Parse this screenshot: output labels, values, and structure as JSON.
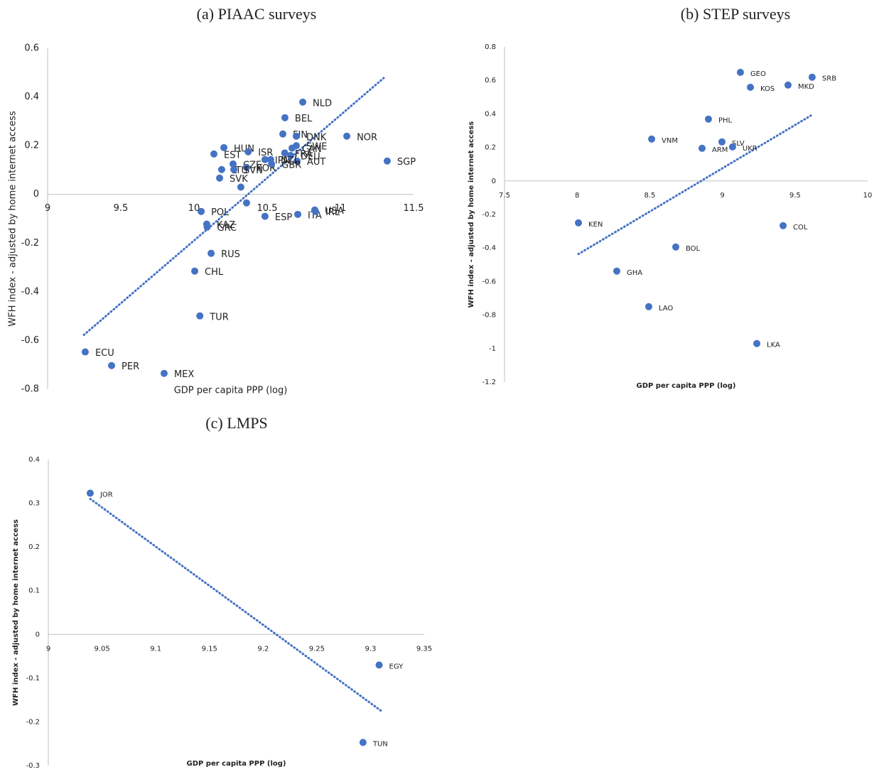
{
  "chart_data": [
    {
      "type": "scatter",
      "title": "(a)  PIAAC surveys",
      "x_label": "GDP per capita PPP (log)",
      "y_label": "WFH index - adjusted by home internet access",
      "color": "#4472c4",
      "labels": [
        "ECU",
        "PER",
        "MEX",
        "TUR",
        "CHL",
        "RUS",
        "GRC",
        "KAZ",
        "POL",
        null,
        "ESP",
        "ITA",
        "USA",
        "IRL",
        "NLD",
        "BEL",
        "FIN",
        "DNK",
        "NOR",
        "SWE",
        "CAN",
        "FRA",
        "HUN",
        "EST",
        "ISR",
        "CZE",
        "IPN",
        "KOR",
        "DEU",
        "AUT",
        "SGP",
        "LTU",
        "SVN",
        "SVK",
        "NZL",
        "GBR",
        null
      ],
      "x": [
        9.257,
        9.437,
        9.796,
        10.04,
        10.005,
        10.117,
        10.09,
        10.087,
        10.049,
        10.359,
        10.485,
        10.709,
        10.825,
        10.83,
        10.743,
        10.621,
        10.607,
        10.699,
        11.044,
        10.699,
        10.67,
        10.62,
        10.204,
        10.136,
        10.37,
        10.267,
        10.485,
        10.359,
        10.66,
        10.704,
        11.32,
        10.189,
        10.272,
        10.175,
        10.524,
        10.53,
        10.32
      ],
      "y": [
        -0.647,
        -0.703,
        -0.735,
        -0.499,
        -0.315,
        -0.242,
        -0.134,
        -0.122,
        -0.07,
        -0.035,
        -0.09,
        -0.082,
        -0.064,
        -0.07,
        0.379,
        0.315,
        0.248,
        0.239,
        0.239,
        0.2,
        0.19,
        0.17,
        0.192,
        0.166,
        0.175,
        0.125,
        0.143,
        0.111,
        0.16,
        0.137,
        0.137,
        0.102,
        0.102,
        0.067,
        0.143,
        0.125,
        0.03
      ],
      "trendline": {
        "x": [
          9.248,
          11.296
        ],
        "y": [
          -0.577,
          0.478
        ]
      },
      "xlim": [
        9,
        11.5
      ],
      "ylim": [
        -0.8,
        0.6
      ],
      "xticks": [
        9,
        9.5,
        10,
        10.5,
        11,
        11.5
      ],
      "yticks": [
        -0.8,
        -0.6,
        -0.4,
        -0.2,
        0,
        0.2,
        0.4,
        0.6
      ]
    },
    {
      "type": "scatter",
      "title": "(b)  STEP surveys",
      "x_label": "GDP per capita PPP (log)",
      "y_label": "WFH index - adjusted by home internet access",
      "color": "#4472c4",
      "labels": [
        "GEO",
        "SRB",
        "KOS",
        "MKD",
        "PHL",
        "VNM",
        "SLV",
        "ARM",
        "UKR",
        "KEN",
        "COL",
        "BOL",
        "GHA",
        "LAO",
        "LKA"
      ],
      "x": [
        9.124,
        9.618,
        9.193,
        9.452,
        8.904,
        8.513,
        8.997,
        8.86,
        9.07,
        8.009,
        9.418,
        8.679,
        8.273,
        8.493,
        9.237
      ],
      "y": [
        0.648,
        0.619,
        0.559,
        0.572,
        0.369,
        0.25,
        0.233,
        0.195,
        0.203,
        -0.25,
        -0.267,
        -0.394,
        -0.538,
        -0.75,
        -0.97
      ],
      "trendline": {
        "x": [
          8.009,
          9.609
        ],
        "y": [
          -0.436,
          0.39
        ]
      },
      "xlim": [
        7.5,
        10
      ],
      "ylim": [
        -1.2,
        0.8
      ],
      "xticks": [
        7.5,
        8,
        8.5,
        9,
        9.5,
        10
      ],
      "yticks": [
        -1.2,
        -1,
        -0.8,
        -0.6,
        -0.4,
        -0.2,
        0,
        0.2,
        0.4,
        0.6,
        0.8
      ]
    },
    {
      "type": "scatter",
      "title": "(c)  LMPS",
      "x_label": "GDP per capita PPP (log)",
      "y_label": "WFH index - adjusted by home internet access",
      "color": "#4472c4",
      "labels": [
        "JOR",
        "EGY",
        "TUN"
      ],
      "x": [
        9.039,
        9.308,
        9.293
      ],
      "y": [
        0.323,
        -0.07,
        -0.247
      ],
      "trendline": {
        "x": [
          9.039,
          9.31
        ],
        "y": [
          0.31,
          -0.175
        ]
      },
      "xlim": [
        9,
        9.35
      ],
      "ylim": [
        -0.3,
        0.4
      ],
      "xticks": [
        9,
        9.05,
        9.1,
        9.15,
        9.2,
        9.25,
        9.3,
        9.35
      ],
      "yticks": [
        -0.3,
        -0.2,
        -0.1,
        0,
        0.1,
        0.2,
        0.3,
        0.4
      ]
    }
  ]
}
